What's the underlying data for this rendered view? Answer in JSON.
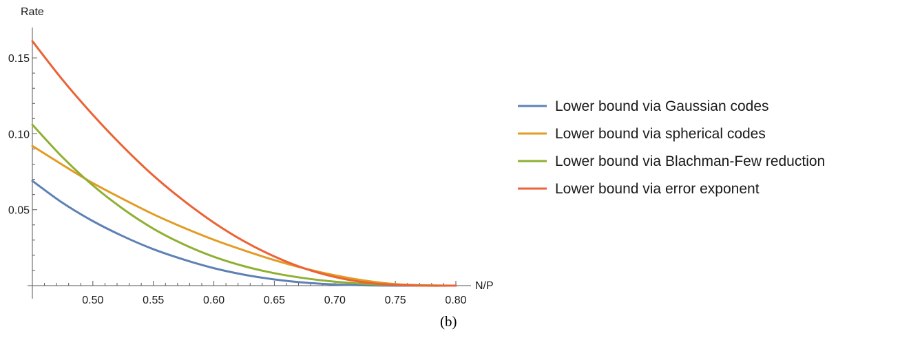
{
  "chart_data": {
    "type": "line",
    "xlabel": "N/P",
    "ylabel": "Rate",
    "xlim": [
      0.45,
      0.8
    ],
    "ylim": [
      0,
      0.17
    ],
    "x_ticks": [
      0.5,
      0.55,
      0.6,
      0.65,
      0.7,
      0.75,
      0.8
    ],
    "x_tick_labels": [
      "0.50",
      "0.55",
      "0.60",
      "0.65",
      "0.70",
      "0.75",
      "0.80"
    ],
    "y_ticks": [
      0.05,
      0.1,
      0.15
    ],
    "y_tick_labels": [
      "0.05",
      "0.10",
      "0.15"
    ],
    "grid": false,
    "legend_position": "right",
    "caption": "(b)",
    "x": [
      0.45,
      0.475,
      0.5,
      0.525,
      0.55,
      0.575,
      0.6,
      0.625,
      0.65,
      0.675,
      0.7,
      0.725,
      0.75,
      0.775,
      0.8
    ],
    "series": [
      {
        "name": "Lower bound via Gaussian codes",
        "color": "#5e81b5",
        "values": [
          0.069,
          0.0545,
          0.0425,
          0.0325,
          0.024,
          0.0172,
          0.0115,
          0.0072,
          0.0041,
          0.002,
          0.0008,
          0.0002,
          0.0,
          0.0,
          0.0
        ]
      },
      {
        "name": "Lower bound via spherical codes",
        "color": "#e19c24",
        "values": [
          0.092,
          0.0795,
          0.0675,
          0.057,
          0.047,
          0.0382,
          0.0302,
          0.0232,
          0.0168,
          0.0113,
          0.0068,
          0.0033,
          0.001,
          0.0002,
          0.0
        ]
      },
      {
        "name": "Lower bound via Blachman-Few reduction",
        "color": "#8fb032",
        "values": [
          0.106,
          0.0845,
          0.066,
          0.0505,
          0.0375,
          0.0272,
          0.019,
          0.0128,
          0.0082,
          0.0049,
          0.0026,
          0.0012,
          0.0004,
          0.0001,
          0.0
        ]
      },
      {
        "name": "Lower bound via error exponent",
        "color": "#eb6235",
        "values": [
          0.161,
          0.1355,
          0.1125,
          0.0915,
          0.0725,
          0.056,
          0.0415,
          0.0292,
          0.0192,
          0.0113,
          0.0057,
          0.0021,
          0.0005,
          0.0,
          0.0
        ]
      }
    ]
  }
}
